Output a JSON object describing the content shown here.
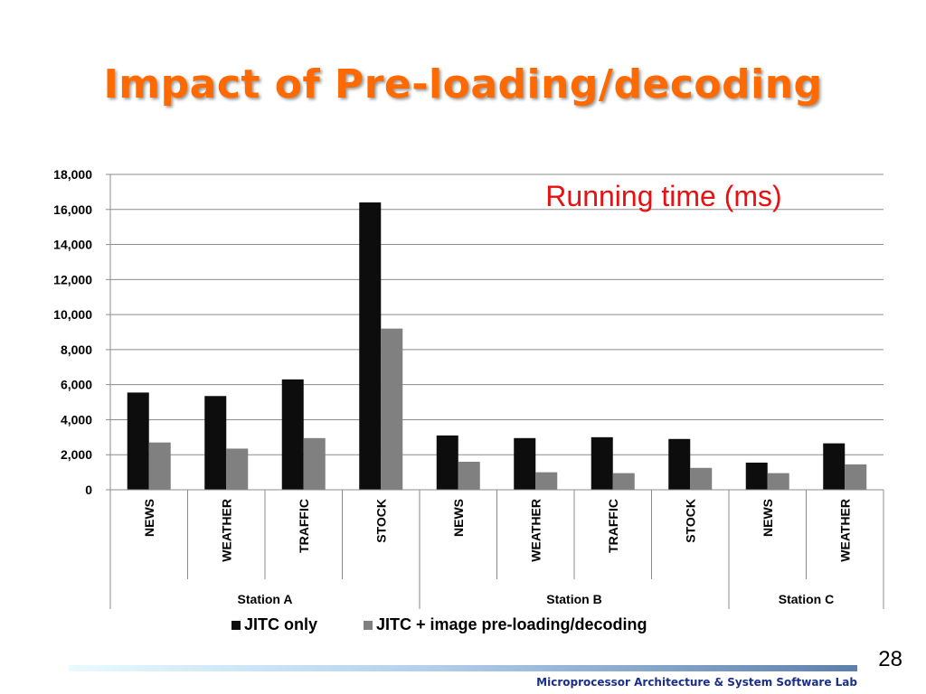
{
  "slide": {
    "title": "Impact of Pre-loading/decoding",
    "page_number": "28",
    "footer": "Microprocessor Architecture & System Software Lab"
  },
  "chart_data": {
    "type": "bar",
    "title": "Running time (ms)",
    "categories": [
      "NEWS",
      "WEATHER",
      "TRAFFIC",
      "STOCK",
      "NEWS",
      "WEATHER",
      "TRAFFIC",
      "STOCK",
      "NEWS",
      "WEATHER"
    ],
    "groups": [
      {
        "name": "Station A",
        "count": 4
      },
      {
        "name": "Station B",
        "count": 4
      },
      {
        "name": "Station C",
        "count": 2
      }
    ],
    "series": [
      {
        "name": "JITC only",
        "color": "#0d0d0d",
        "values": [
          5550,
          5350,
          6300,
          16400,
          3100,
          2950,
          3000,
          2900,
          1550,
          2650
        ]
      },
      {
        "name": "JITC + image pre-loading/decoding",
        "color": "#808080",
        "values": [
          2700,
          2350,
          2950,
          9200,
          1600,
          1000,
          950,
          1250,
          950,
          1450
        ]
      }
    ],
    "ylim": [
      0,
      18000
    ],
    "yticks": [
      "0",
      "2,000",
      "4,000",
      "6,000",
      "8,000",
      "10,000",
      "12,000",
      "14,000",
      "16,000",
      "18,000"
    ],
    "grid": true,
    "legend": "bottom"
  }
}
